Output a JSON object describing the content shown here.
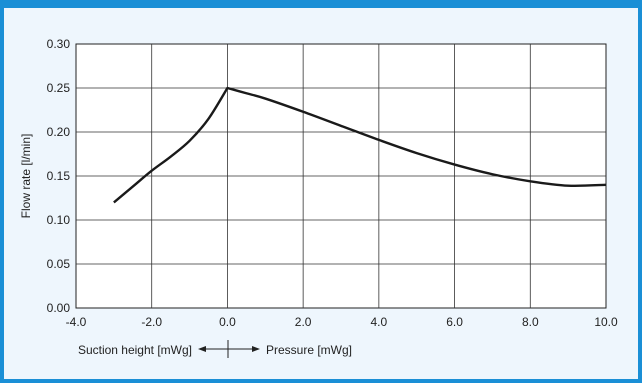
{
  "chart_data": {
    "type": "line",
    "title": "",
    "ylabel": "Flow rate [l/min]",
    "xlabel_left": "Suction height [mWg]",
    "xlabel_right": "Pressure [mWg]",
    "xlim": [
      -4.0,
      10.0
    ],
    "ylim": [
      0.0,
      0.3
    ],
    "x_ticks": [
      "-4.0",
      "-2.0",
      "0.0",
      "2.0",
      "4.0",
      "6.0",
      "8.0",
      "10.0"
    ],
    "y_ticks": [
      "0.00",
      "0.05",
      "0.10",
      "0.15",
      "0.20",
      "0.25",
      "0.30"
    ],
    "grid": true,
    "series": [
      {
        "color": "#1a1a1a",
        "x": [
          -3.0,
          -2.5,
          -2.0,
          -1.5,
          -1.0,
          -0.5,
          0.0,
          0.5,
          1.0,
          2.0,
          3.0,
          4.0,
          5.0,
          6.0,
          7.0,
          8.0,
          9.0,
          10.0
        ],
        "y": [
          0.12,
          0.138,
          0.156,
          0.172,
          0.19,
          0.215,
          0.25,
          0.244,
          0.238,
          0.223,
          0.207,
          0.191,
          0.176,
          0.163,
          0.152,
          0.144,
          0.139,
          0.14
        ]
      }
    ]
  }
}
